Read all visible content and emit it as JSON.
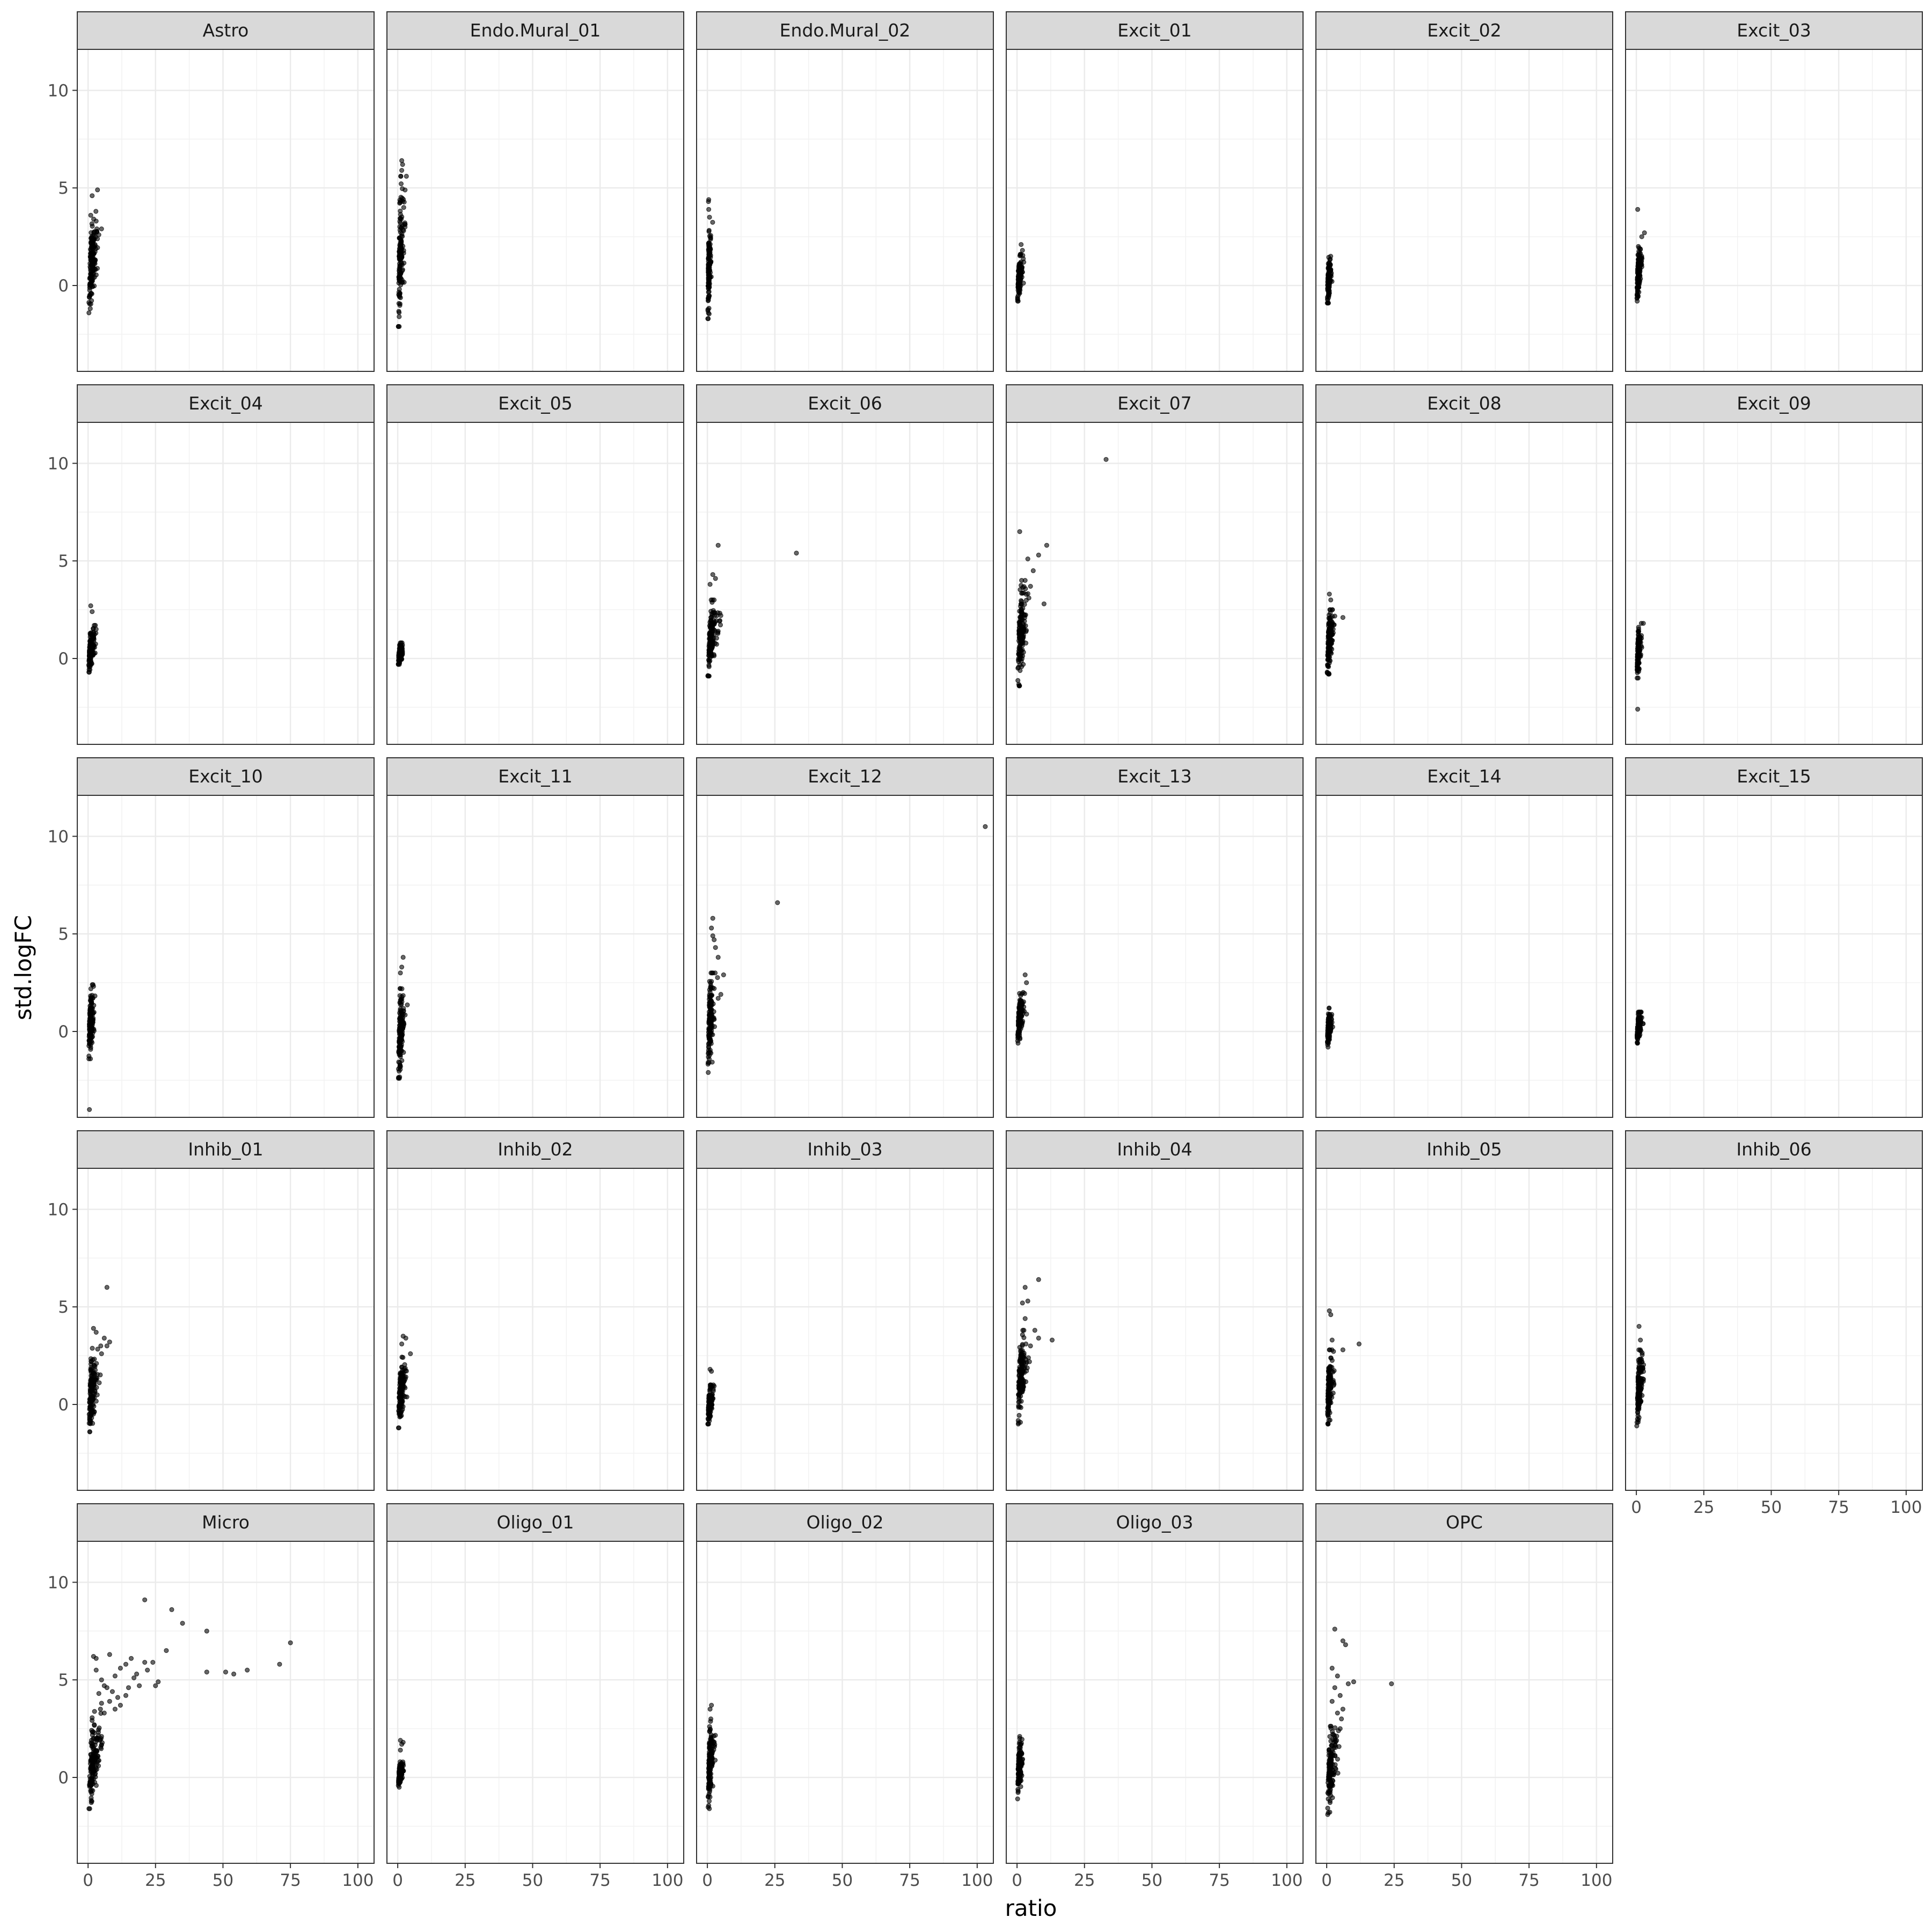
{
  "chart_data": {
    "type": "scatter",
    "layout": "facet-grid",
    "xlabel": "ratio",
    "ylabel": "std.logFC",
    "xlim": [
      -4,
      106
    ],
    "ylim": [
      -4.4,
      12.1
    ],
    "x_ticks": [
      0,
      25,
      50,
      75,
      100
    ],
    "y_ticks": [
      0,
      5,
      10
    ],
    "grid": true,
    "point_color": "#000000",
    "panels": [
      {
        "label": "Astro",
        "cluster": {
          "ymin": -1.4,
          "ymax": 3.8,
          "xspread": 3
        },
        "outliers": [
          [
            3.5,
            4.9
          ],
          [
            1.5,
            4.6
          ],
          [
            4,
            2.6
          ],
          [
            5,
            2.9
          ],
          [
            3,
            3.3
          ],
          [
            1,
            3.6
          ]
        ]
      },
      {
        "label": "Endo.Mural_01",
        "cluster": {
          "ymin": -2.1,
          "ymax": 5.6,
          "xspread": 2
        },
        "outliers": [
          [
            1.5,
            6.4
          ],
          [
            1.8,
            6.2
          ],
          [
            1.5,
            5.9
          ]
        ]
      },
      {
        "label": "Endo.Mural_02",
        "cluster": {
          "ymin": -1.7,
          "ymax": 3.5,
          "xspread": 1
        },
        "outliers": [
          [
            0.5,
            4.4
          ],
          [
            0.4,
            4.3
          ],
          [
            0.5,
            3.9
          ]
        ]
      },
      {
        "label": "Excit_01",
        "cluster": {
          "ymin": -0.8,
          "ymax": 1.6,
          "xspread": 1.5
        },
        "outliers": [
          [
            1.5,
            2.1
          ],
          [
            2,
            1.8
          ],
          [
            2.5,
            1.2
          ]
        ]
      },
      {
        "label": "Excit_02",
        "cluster": {
          "ymin": -0.9,
          "ymax": 1.5,
          "xspread": 1.5
        },
        "outliers": []
      },
      {
        "label": "Excit_03",
        "cluster": {
          "ymin": -0.8,
          "ymax": 2.0,
          "xspread": 1.5
        },
        "outliers": [
          [
            0.5,
            3.9
          ],
          [
            3,
            2.7
          ],
          [
            2,
            2.5
          ]
        ]
      },
      {
        "label": "Excit_04",
        "cluster": {
          "ymin": -0.7,
          "ymax": 1.7,
          "xspread": 2
        },
        "outliers": [
          [
            1,
            2.7
          ],
          [
            1.5,
            2.4
          ],
          [
            3,
            1.5
          ]
        ]
      },
      {
        "label": "Excit_05",
        "cluster": {
          "ymin": -0.3,
          "ymax": 0.8,
          "xspread": 1.5
        },
        "outliers": []
      },
      {
        "label": "Excit_06",
        "cluster": {
          "ymin": -0.9,
          "ymax": 3.0,
          "xspread": 3
        },
        "outliers": [
          [
            4,
            5.8
          ],
          [
            33,
            5.4
          ],
          [
            2,
            4.3
          ],
          [
            3,
            4.1
          ],
          [
            1,
            3.8
          ],
          [
            5,
            2.2
          ],
          [
            4,
            1.4
          ]
        ]
      },
      {
        "label": "Excit_07",
        "cluster": {
          "ymin": -1.4,
          "ymax": 4.0,
          "xspread": 3
        },
        "outliers": [
          [
            33,
            10.2
          ],
          [
            1,
            6.5
          ],
          [
            11,
            5.8
          ],
          [
            8,
            5.3
          ],
          [
            4,
            5.1
          ],
          [
            6,
            4.5
          ],
          [
            10,
            2.8
          ],
          [
            5,
            3.7
          ],
          [
            3,
            4.0
          ]
        ]
      },
      {
        "label": "Excit_08",
        "cluster": {
          "ymin": -0.8,
          "ymax": 2.5,
          "xspread": 2
        },
        "outliers": [
          [
            1,
            3.3
          ],
          [
            6,
            2.1
          ],
          [
            1.5,
            3.0
          ]
        ]
      },
      {
        "label": "Excit_09",
        "cluster": {
          "ymin": -1.0,
          "ymax": 1.8,
          "xspread": 1.5
        },
        "outliers": [
          [
            0.5,
            -2.6
          ]
        ]
      },
      {
        "label": "Excit_10",
        "cluster": {
          "ymin": -1.4,
          "ymax": 2.4,
          "xspread": 2
        },
        "outliers": [
          [
            0.5,
            -4.0
          ]
        ]
      },
      {
        "label": "Excit_11",
        "cluster": {
          "ymin": -2.4,
          "ymax": 2.2,
          "xspread": 2
        },
        "outliers": [
          [
            2,
            3.8
          ],
          [
            1.5,
            3.3
          ],
          [
            1,
            3.0
          ]
        ]
      },
      {
        "label": "Excit_12",
        "cluster": {
          "ymin": -2.1,
          "ymax": 3.0,
          "xspread": 2
        },
        "outliers": [
          [
            103,
            10.5
          ],
          [
            26,
            6.6
          ],
          [
            2,
            5.8
          ],
          [
            1.5,
            5.3
          ],
          [
            2,
            4.9
          ],
          [
            2.5,
            4.7
          ],
          [
            3,
            4.3
          ],
          [
            4,
            3.8
          ],
          [
            6,
            2.9
          ],
          [
            5,
            1.9
          ],
          [
            4,
            1.7
          ]
        ]
      },
      {
        "label": "Excit_13",
        "cluster": {
          "ymin": -0.6,
          "ymax": 2.0,
          "xspread": 2
        },
        "outliers": [
          [
            3,
            2.9
          ],
          [
            3.5,
            2.5
          ]
        ]
      },
      {
        "label": "Excit_14",
        "cluster": {
          "ymin": -0.8,
          "ymax": 1.2,
          "xspread": 1.5
        },
        "outliers": []
      },
      {
        "label": "Excit_15",
        "cluster": {
          "ymin": -0.6,
          "ymax": 1.0,
          "xspread": 1.5
        },
        "outliers": []
      },
      {
        "label": "Inhib_01",
        "cluster": {
          "ymin": -1.4,
          "ymax": 3.0,
          "xspread": 3
        },
        "outliers": [
          [
            7,
            6.0
          ],
          [
            2,
            3.9
          ],
          [
            3,
            3.7
          ],
          [
            6,
            3.4
          ],
          [
            7,
            3.0
          ],
          [
            5,
            2.6
          ],
          [
            8,
            3.2
          ]
        ]
      },
      {
        "label": "Inhib_02",
        "cluster": {
          "ymin": -1.2,
          "ymax": 2.6,
          "xspread": 2.5
        },
        "outliers": [
          [
            2,
            3.5
          ],
          [
            3,
            3.4
          ],
          [
            1.5,
            3.1
          ]
        ]
      },
      {
        "label": "Inhib_03",
        "cluster": {
          "ymin": -1.0,
          "ymax": 1.0,
          "xspread": 1.5
        },
        "outliers": [
          [
            1,
            1.8
          ],
          [
            1.5,
            1.7
          ]
        ]
      },
      {
        "label": "Inhib_04",
        "cluster": {
          "ymin": -1.0,
          "ymax": 3.8,
          "xspread": 3
        },
        "outliers": [
          [
            8,
            6.4
          ],
          [
            3,
            6.0
          ],
          [
            4,
            5.3
          ],
          [
            2,
            5.2
          ],
          [
            13,
            3.3
          ],
          [
            8,
            3.4
          ],
          [
            3,
            4.4
          ],
          [
            5,
            3.0
          ]
        ]
      },
      {
        "label": "Inhib_05",
        "cluster": {
          "ymin": -1.0,
          "ymax": 2.8,
          "xspread": 2
        },
        "outliers": [
          [
            1,
            4.8
          ],
          [
            1.5,
            4.6
          ],
          [
            12,
            3.1
          ],
          [
            6,
            2.8
          ],
          [
            2,
            3.3
          ]
        ]
      },
      {
        "label": "Inhib_06",
        "cluster": {
          "ymin": -1.1,
          "ymax": 2.8,
          "xspread": 2
        },
        "outliers": [
          [
            1,
            4.0
          ],
          [
            1.5,
            3.3
          ]
        ]
      },
      {
        "label": "Micro",
        "cluster": {
          "ymin": -1.6,
          "ymax": 3.5,
          "xspread": 4
        },
        "outliers": [
          [
            21,
            9.1
          ],
          [
            31,
            8.6
          ],
          [
            35,
            7.9
          ],
          [
            44,
            7.5
          ],
          [
            75,
            6.9
          ],
          [
            29,
            6.5
          ],
          [
            71,
            5.8
          ],
          [
            59,
            5.5
          ],
          [
            51,
            5.4
          ],
          [
            54,
            5.3
          ],
          [
            44,
            5.4
          ],
          [
            26,
            4.9
          ],
          [
            25,
            4.7
          ],
          [
            2,
            6.2
          ],
          [
            3,
            6.1
          ],
          [
            8,
            6.3
          ],
          [
            12,
            5.6
          ],
          [
            14,
            5.8
          ],
          [
            16,
            6.1
          ],
          [
            17,
            5.1
          ],
          [
            19,
            4.7
          ],
          [
            21,
            5.9
          ],
          [
            10,
            5.2
          ],
          [
            6,
            4.7
          ],
          [
            7,
            4.6
          ],
          [
            9,
            4.4
          ],
          [
            11,
            4.1
          ],
          [
            8,
            3.9
          ],
          [
            5,
            5.0
          ],
          [
            4,
            4.3
          ],
          [
            10,
            3.5
          ],
          [
            12,
            3.7
          ],
          [
            15,
            4.6
          ],
          [
            18,
            5.3
          ],
          [
            14,
            4.2
          ],
          [
            6,
            3.3
          ],
          [
            3,
            5.5
          ],
          [
            5,
            3.8
          ],
          [
            22,
            5.5
          ],
          [
            24,
            5.9
          ]
        ]
      },
      {
        "label": "Oligo_01",
        "cluster": {
          "ymin": -0.5,
          "ymax": 0.8,
          "xspread": 1.5
        },
        "outliers": [
          [
            1,
            1.9
          ],
          [
            1.5,
            1.7
          ],
          [
            1,
            1.4
          ],
          [
            2,
            1.8
          ]
        ]
      },
      {
        "label": "Oligo_02",
        "cluster": {
          "ymin": -1.6,
          "ymax": 3.0,
          "xspread": 2
        },
        "outliers": [
          [
            1.5,
            3.7
          ],
          [
            1,
            3.5
          ]
        ]
      },
      {
        "label": "Oligo_03",
        "cluster": {
          "ymin": -1.1,
          "ymax": 2.0,
          "xspread": 1.5
        },
        "outliers": [
          [
            1,
            2.1
          ]
        ]
      },
      {
        "label": "OPC",
        "cluster": {
          "ymin": -1.9,
          "ymax": 3.0,
          "xspread": 3
        },
        "outliers": [
          [
            3,
            7.6
          ],
          [
            6,
            7.0
          ],
          [
            7,
            6.8
          ],
          [
            2,
            5.6
          ],
          [
            4,
            5.2
          ],
          [
            10,
            4.9
          ],
          [
            8,
            4.8
          ],
          [
            24,
            4.8
          ],
          [
            3,
            4.6
          ],
          [
            5,
            4.2
          ],
          [
            6,
            3.5
          ],
          [
            2,
            3.9
          ],
          [
            5,
            2.5
          ],
          [
            4,
            3.3
          ]
        ]
      }
    ]
  }
}
